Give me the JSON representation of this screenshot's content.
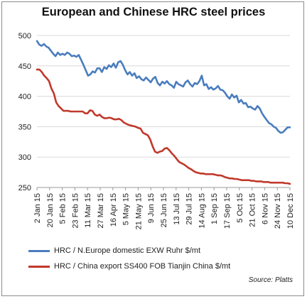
{
  "chart_data": {
    "type": "line",
    "title": "European and Chinese HRC steel prices",
    "source": "Source: Platts",
    "ylim": [
      250,
      500
    ],
    "yticks": [
      250,
      300,
      350,
      400,
      450,
      500
    ],
    "x_tick_labels": [
      "2 Jan 15",
      "20 Jan 15",
      "5 Feb 15",
      "23 Feb 15",
      "11 Mar 15",
      "27 Mar 15",
      "16 Apr 15",
      "5 May 15",
      "21 May 15",
      "9 Jun 15",
      "25 Jun 15",
      "13 Jul 15",
      "29 Jul 15",
      "14 Aug 15",
      "1 Sep 15",
      "17 Sep 15",
      "5 Oct 15",
      "21 Oct 15",
      "6 Nov 15",
      "24 Nov 15",
      "10 Dec 15"
    ],
    "grid": "horizontal",
    "legend_position": "bottom",
    "series": [
      {
        "name": "HRC / N.Europe domestic EXW Ruhr $/mt",
        "color": "#4a7dbd",
        "values": [
          491,
          485,
          483,
          486,
          482,
          480,
          475,
          470,
          466,
          472,
          468,
          470,
          468,
          472,
          470,
          466,
          467,
          465,
          468,
          460,
          452,
          443,
          434,
          436,
          441,
          439,
          446,
          446,
          440,
          448,
          445,
          451,
          448,
          454,
          447,
          456,
          458,
          452,
          443,
          436,
          440,
          434,
          438,
          430,
          433,
          428,
          426,
          431,
          427,
          423,
          429,
          432,
          422,
          418,
          424,
          421,
          425,
          420,
          418,
          414,
          424,
          420,
          418,
          416,
          423,
          426,
          420,
          416,
          422,
          420,
          425,
          434,
          418,
          420,
          412,
          415,
          411,
          413,
          417,
          411,
          410,
          406,
          400,
          396,
          403,
          398,
          401,
          390,
          394,
          388,
          389,
          382,
          383,
          380,
          378,
          384,
          380,
          372,
          366,
          361,
          356,
          354,
          350,
          348,
          343,
          340,
          341,
          345,
          349,
          349
        ]
      },
      {
        "name": "HRC / China export SS400 FOB Tianjin China $/mt",
        "color": "#c0392b",
        "values": [
          444,
          444,
          440,
          434,
          430,
          425,
          413,
          405,
          390,
          384,
          380,
          376,
          376,
          376,
          375,
          375,
          375,
          375,
          375,
          375,
          372,
          372,
          377,
          376,
          370,
          368,
          370,
          366,
          364,
          364,
          365,
          364,
          362,
          362,
          363,
          361,
          357,
          355,
          353,
          352,
          351,
          350,
          348,
          347,
          340,
          338,
          336,
          329,
          318,
          309,
          307,
          309,
          310,
          314,
          315,
          311,
          306,
          302,
          297,
          292,
          290,
          288,
          285,
          282,
          280,
          277,
          275,
          274,
          273,
          273,
          272,
          272,
          272,
          272,
          271,
          270,
          270,
          269,
          267,
          266,
          265,
          265,
          264,
          264,
          263,
          262,
          262,
          262,
          262,
          261,
          261,
          260,
          260,
          260,
          259,
          259,
          259,
          258,
          258,
          258,
          258,
          258,
          258,
          257,
          257,
          256
        ]
      }
    ]
  }
}
